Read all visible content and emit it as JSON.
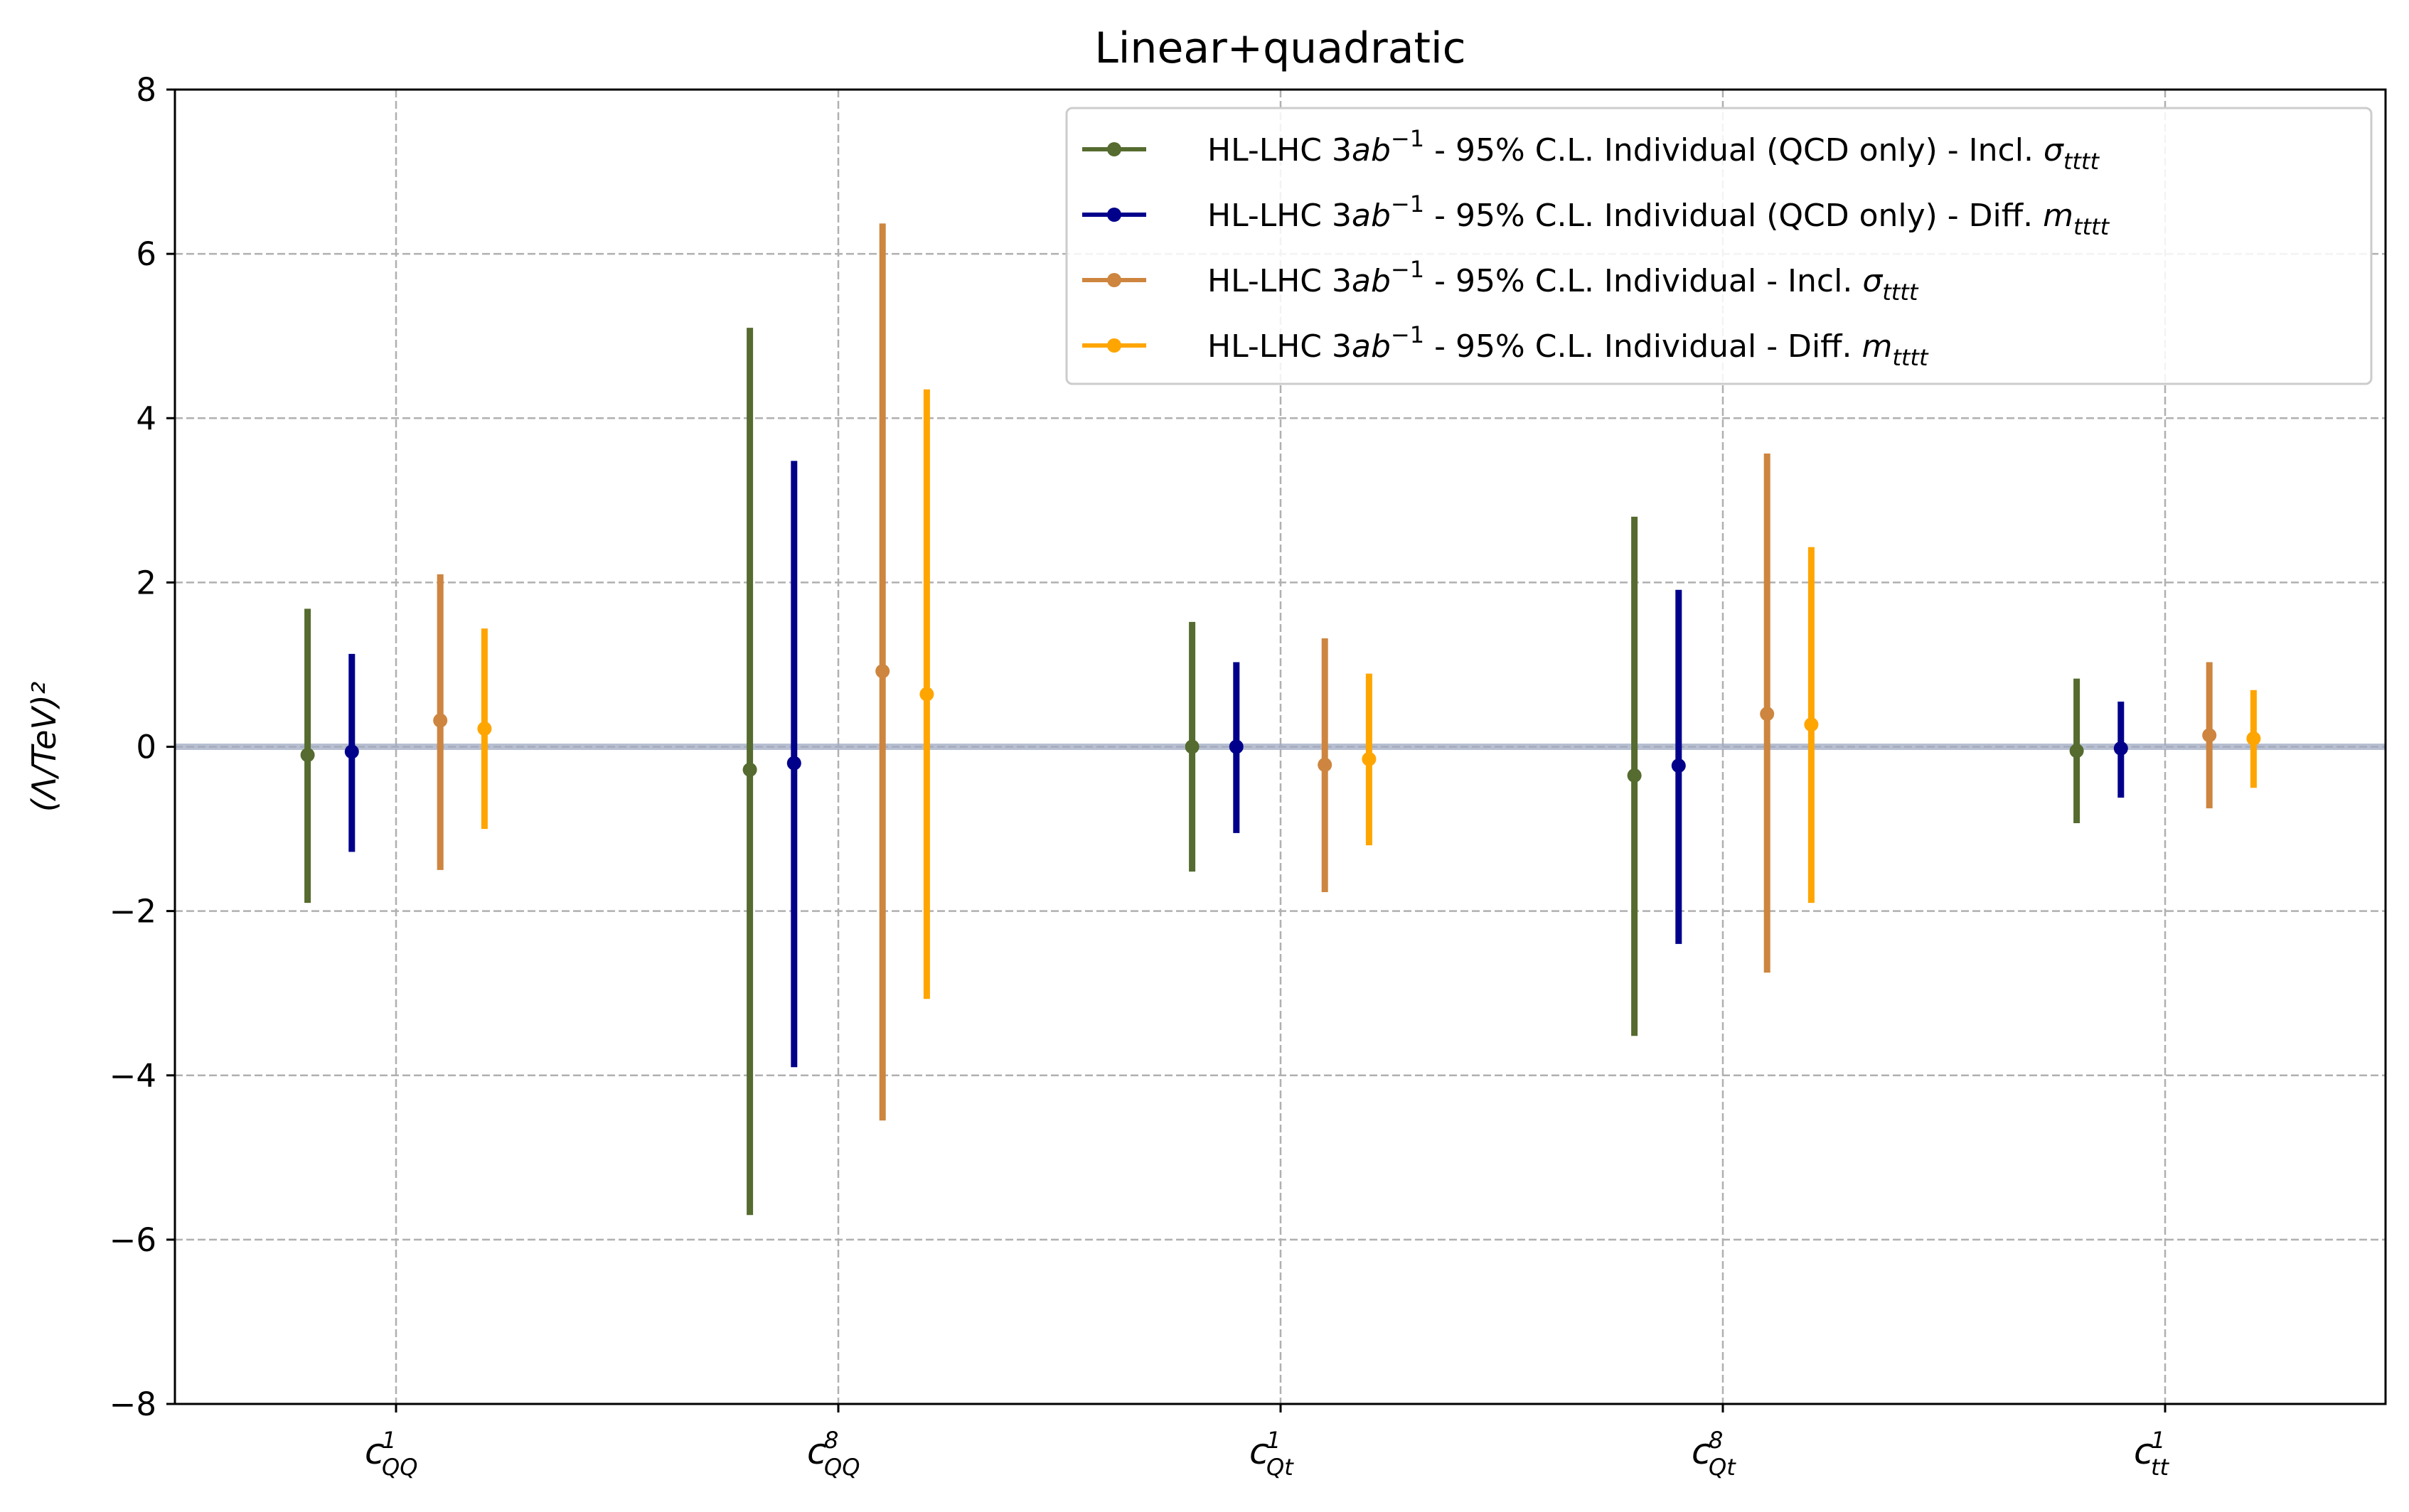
{
  "chart_data": {
    "type": "errorbar",
    "title": "Linear+quadratic",
    "ylabel": "(Λ/TeV)²",
    "ylim": [
      -8,
      8
    ],
    "yticks": [
      -8,
      -6,
      -4,
      -2,
      0,
      2,
      4,
      6,
      8
    ],
    "grid": true,
    "reference_line": 0,
    "legend_position": "upper right",
    "categories": [
      {
        "base": "c",
        "sup": "1",
        "sub": "QQ"
      },
      {
        "base": "c",
        "sup": "8",
        "sub": "QQ"
      },
      {
        "base": "c",
        "sup": "1",
        "sub": "Qt"
      },
      {
        "base": "c",
        "sup": "8",
        "sub": "Qt"
      },
      {
        "base": "c",
        "sup": "1",
        "sub": "tt"
      }
    ],
    "series": [
      {
        "name": "HL-LHC 3ab⁻¹ - 95% C.L. Individual (QCD only) - Incl. σ_tttt",
        "legend_parts": {
          "pre": "HL-LHC 3",
          "ab": "ab",
          "exp": "−1",
          "mid": " - 95% C.L. Individual (QCD only) - Incl. ",
          "sym": "σ",
          "sub": "tttt"
        },
        "color": "#556b2f",
        "offset": -0.2,
        "points": [
          {
            "center": -0.1,
            "low": -1.9,
            "high": 1.68
          },
          {
            "center": -0.28,
            "low": -5.7,
            "high": 5.1
          },
          {
            "center": 0.0,
            "low": -1.52,
            "high": 1.52
          },
          {
            "center": -0.35,
            "low": -3.52,
            "high": 2.8
          },
          {
            "center": -0.05,
            "low": -0.93,
            "high": 0.83
          }
        ]
      },
      {
        "name": "HL-LHC 3ab⁻¹ - 95% C.L. Individual (QCD only) - Diff. m_tttt",
        "legend_parts": {
          "pre": "HL-LHC 3",
          "ab": "ab",
          "exp": "−1",
          "mid": " - 95% C.L. Individual (QCD only) - Diff. ",
          "sym": "m",
          "sub": "tttt"
        },
        "color": "#00008b",
        "offset": -0.1,
        "points": [
          {
            "center": -0.06,
            "low": -1.28,
            "high": 1.13
          },
          {
            "center": -0.2,
            "low": -3.9,
            "high": 3.48
          },
          {
            "center": 0.0,
            "low": -1.05,
            "high": 1.03
          },
          {
            "center": -0.23,
            "low": -2.4,
            "high": 1.91
          },
          {
            "center": -0.02,
            "low": -0.62,
            "high": 0.55
          }
        ]
      },
      {
        "name": "HL-LHC 3ab⁻¹ - 95% C.L. Individual - Incl. σ_tttt",
        "legend_parts": {
          "pre": "HL-LHC 3",
          "ab": "ab",
          "exp": "−1",
          "mid": " - 95% C.L. Individual - Incl. ",
          "sym": "σ",
          "sub": "tttt"
        },
        "color": "#cd853f",
        "offset": 0.1,
        "points": [
          {
            "center": 0.32,
            "low": -1.5,
            "high": 2.1
          },
          {
            "center": 0.92,
            "low": -4.55,
            "high": 6.37
          },
          {
            "center": -0.22,
            "low": -1.77,
            "high": 1.32
          },
          {
            "center": 0.4,
            "low": -2.75,
            "high": 3.57
          },
          {
            "center": 0.14,
            "low": -0.75,
            "high": 1.03
          }
        ]
      },
      {
        "name": "HL-LHC 3ab⁻¹ - 95% C.L. Individual - Diff. m_tttt",
        "legend_parts": {
          "pre": "HL-LHC 3",
          "ab": "ab",
          "exp": "−1",
          "mid": " - 95% C.L. Individual - Diff. ",
          "sym": "m",
          "sub": "tttt"
        },
        "color": "#ffa500",
        "offset": 0.2,
        "points": [
          {
            "center": 0.22,
            "low": -1.0,
            "high": 1.44
          },
          {
            "center": 0.64,
            "low": -3.07,
            "high": 4.35
          },
          {
            "center": -0.15,
            "low": -1.2,
            "high": 0.89
          },
          {
            "center": 0.27,
            "low": -1.9,
            "high": 2.43
          },
          {
            "center": 0.1,
            "low": -0.5,
            "high": 0.69
          }
        ]
      }
    ]
  }
}
